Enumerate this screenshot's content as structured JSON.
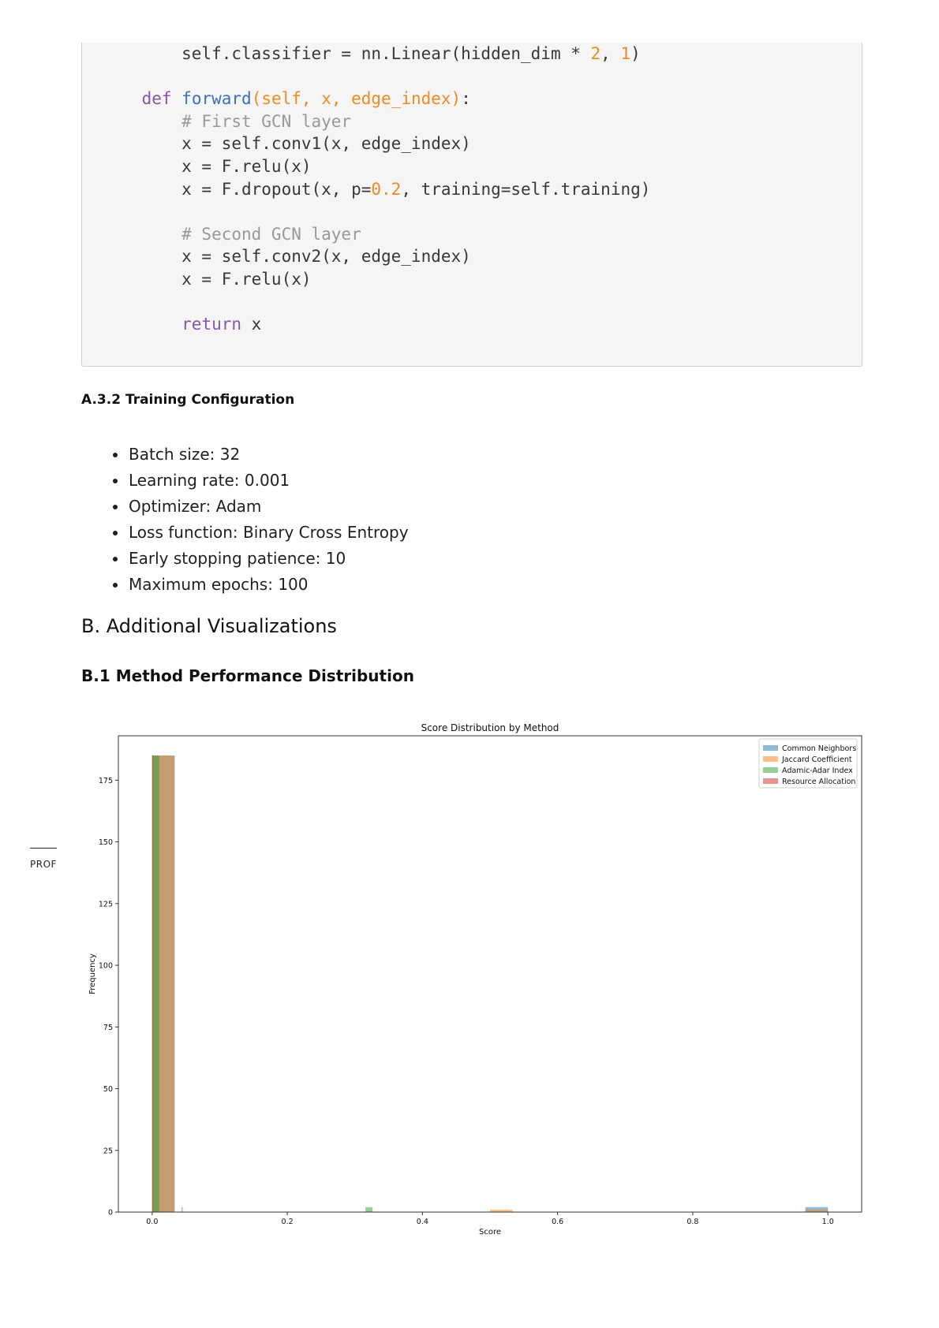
{
  "code": {
    "lines": [
      {
        "parts": [
          {
            "t": "        self.classifier = nn.Linear(hidden_dim * ",
            "c": ""
          },
          {
            "t": "2",
            "c": "num"
          },
          {
            "t": ", ",
            "c": ""
          },
          {
            "t": "1",
            "c": "num"
          },
          {
            "t": ")",
            "c": ""
          }
        ]
      },
      {
        "parts": []
      },
      {
        "parts": [
          {
            "t": "    ",
            "c": ""
          },
          {
            "t": "def",
            "c": "kw"
          },
          {
            "t": " ",
            "c": ""
          },
          {
            "t": "forward",
            "c": "fn"
          },
          {
            "t": "(self, x, edge_index)",
            "c": "arg"
          },
          {
            "t": ":",
            "c": ""
          }
        ]
      },
      {
        "parts": [
          {
            "t": "        # First GCN layer",
            "c": "cm"
          }
        ]
      },
      {
        "parts": [
          {
            "t": "        x = self.conv1(x, edge_index)",
            "c": ""
          }
        ]
      },
      {
        "parts": [
          {
            "t": "        x = F.relu(x)",
            "c": ""
          }
        ]
      },
      {
        "parts": [
          {
            "t": "        x = F.dropout(x, p=",
            "c": ""
          },
          {
            "t": "0.2",
            "c": "num"
          },
          {
            "t": ", training=self.training)",
            "c": ""
          }
        ]
      },
      {
        "parts": []
      },
      {
        "parts": [
          {
            "t": "        # Second GCN layer",
            "c": "cm"
          }
        ]
      },
      {
        "parts": [
          {
            "t": "        x = self.conv2(x, edge_index)",
            "c": ""
          }
        ]
      },
      {
        "parts": [
          {
            "t": "        x = F.relu(x)",
            "c": ""
          }
        ]
      },
      {
        "parts": []
      },
      {
        "parts": [
          {
            "t": "        ",
            "c": ""
          },
          {
            "t": "return",
            "c": "kw"
          },
          {
            "t": " x",
            "c": ""
          }
        ]
      }
    ]
  },
  "sections": {
    "training_heading": "A.3.2 Training Configuration",
    "training_items": [
      "Batch size: 32",
      "Learning rate: 0.001",
      "Optimizer: Adam",
      "Loss function: Binary Cross Entropy",
      "Early stopping patience: 10",
      "Maximum epochs: 100"
    ],
    "viz_heading": "B. Additional Visualizations",
    "dist_heading": "B.1 Method Performance Distribution"
  },
  "margin_note": "PROF",
  "chart_data": {
    "type": "bar",
    "title": "Score Distribution by Method",
    "xlabel": "Score",
    "ylabel": "Frequency",
    "xlim": [
      -0.05,
      1.05
    ],
    "ylim": [
      0,
      193
    ],
    "xticks": [
      "0.0",
      "0.2",
      "0.4",
      "0.6",
      "0.8",
      "1.0"
    ],
    "yticks": [
      "0",
      "25",
      "50",
      "75",
      "100",
      "125",
      "150",
      "175"
    ],
    "legend_position": "top-right",
    "series": [
      {
        "name": "Common Neighbors",
        "color": "#1f77b4",
        "bins": [
          {
            "x0": 0.0,
            "x1": 0.0333,
            "count": 185
          },
          {
            "x0": 0.9667,
            "x1": 1.0,
            "count": 2
          }
        ]
      },
      {
        "name": "Jaccard Coefficient",
        "color": "#ff7f0e",
        "bins": [
          {
            "x0": 0.0,
            "x1": 0.0333,
            "count": 185
          },
          {
            "x0": 0.5,
            "x1": 0.5333,
            "count": 1
          },
          {
            "x0": 0.9667,
            "x1": 1.0,
            "count": 1
          }
        ]
      },
      {
        "name": "Adamic-Adar Index",
        "color": "#2ca02c",
        "bins": [
          {
            "x0": 0.0,
            "x1": 0.0106,
            "count": 185
          },
          {
            "x0": 0.3156,
            "x1": 0.3262,
            "count": 2
          }
        ]
      },
      {
        "name": "Resource Allocation",
        "color": "#d62728",
        "bins": [
          {
            "x0": 0.0,
            "x1": 0.0015,
            "count": 185
          },
          {
            "x0": 0.0436,
            "x1": 0.0451,
            "count": 2
          }
        ]
      }
    ]
  }
}
